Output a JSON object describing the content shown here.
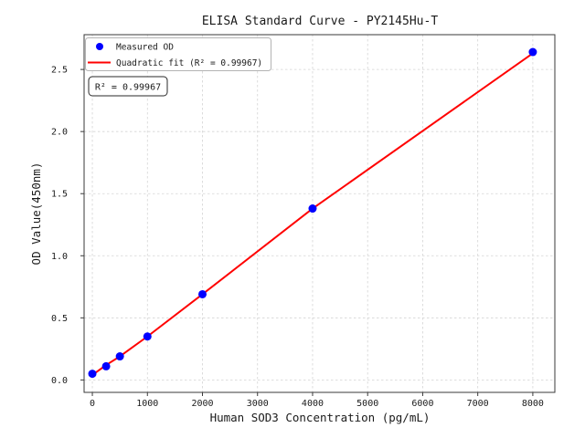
{
  "figure": {
    "title": "ELISA Standard Curve - PY2145Hu-T",
    "x_axis_label": "Human SOD3 Concentration (pg/mL)",
    "y_axis_label": "OD Value(450nm)",
    "annotation_box": "R² = 0.99967",
    "legend": {
      "items": [
        {
          "label": "Measured OD",
          "marker": "blue-dot"
        },
        {
          "label": "Quadratic fit (R² = 0.99967)",
          "marker": "red-line"
        }
      ]
    }
  },
  "chart_data": {
    "type": "scatter",
    "title": "ELISA Standard Curve - PY2145Hu-T",
    "xlabel": "Human SOD3 Concentration (pg/mL)",
    "ylabel": "OD Value(450nm)",
    "x": [
      0,
      250,
      500,
      1000,
      2000,
      4000,
      8000
    ],
    "series": [
      {
        "name": "Measured OD",
        "kind": "scatter",
        "color": "#0000ff",
        "values": [
          0.05,
          0.11,
          0.19,
          0.35,
          0.69,
          1.38,
          2.64
        ]
      },
      {
        "name": "Quadratic fit (R² = 0.99967)",
        "kind": "line",
        "color": "#ff0000",
        "values": [
          0.04,
          0.12,
          0.19,
          0.35,
          0.69,
          1.38,
          2.63
        ]
      }
    ],
    "r_squared": "0.99967",
    "x_ticks": [
      0,
      1000,
      2000,
      3000,
      4000,
      5000,
      6000,
      7000,
      8000
    ],
    "x_tick_labels": [
      "0",
      "1000",
      "2000",
      "3000",
      "4000",
      "5000",
      "6000",
      "7000",
      "8000"
    ],
    "y_ticks": [
      0.0,
      0.5,
      1.0,
      1.5,
      2.0,
      2.5
    ],
    "y_tick_labels": [
      "0.0",
      "0.5",
      "1.0",
      "1.5",
      "2.0",
      "2.5"
    ],
    "xlim": [
      -150,
      8400
    ],
    "ylim": [
      -0.1,
      2.78
    ],
    "grid": true,
    "grid_linestyle": "dashed",
    "legend_position": "upper left"
  },
  "colors": {
    "measured_point": "#0000ff",
    "fit_line": "#ff0000",
    "grid": "#d4d4d4",
    "spine": "#3a3a3a",
    "legend_border": "#b3b3b3",
    "annotation_border": "#2a2a2a",
    "background": "#ffffff"
  }
}
